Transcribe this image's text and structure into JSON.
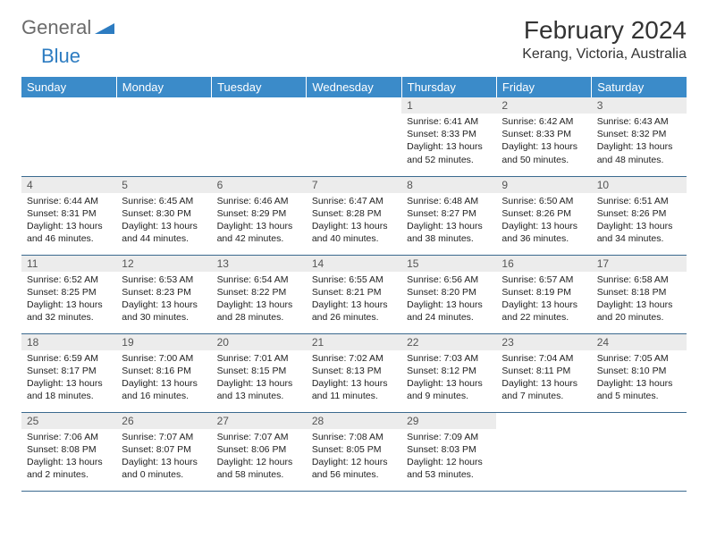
{
  "logo": {
    "part1": "General",
    "part2": "Blue"
  },
  "title": "February 2024",
  "location": "Kerang, Victoria, Australia",
  "colors": {
    "header_bg": "#3b8bc9",
    "header_text": "#ffffff",
    "daynum_bg": "#ececec",
    "border": "#3b6a8f",
    "logo_gray": "#6b6b6b",
    "logo_blue": "#2d7cc1"
  },
  "weekdays": [
    "Sunday",
    "Monday",
    "Tuesday",
    "Wednesday",
    "Thursday",
    "Friday",
    "Saturday"
  ],
  "weeks": [
    [
      null,
      null,
      null,
      null,
      {
        "n": "1",
        "sr": "Sunrise: 6:41 AM",
        "ss": "Sunset: 8:33 PM",
        "dl": "Daylight: 13 hours and 52 minutes."
      },
      {
        "n": "2",
        "sr": "Sunrise: 6:42 AM",
        "ss": "Sunset: 8:33 PM",
        "dl": "Daylight: 13 hours and 50 minutes."
      },
      {
        "n": "3",
        "sr": "Sunrise: 6:43 AM",
        "ss": "Sunset: 8:32 PM",
        "dl": "Daylight: 13 hours and 48 minutes."
      }
    ],
    [
      {
        "n": "4",
        "sr": "Sunrise: 6:44 AM",
        "ss": "Sunset: 8:31 PM",
        "dl": "Daylight: 13 hours and 46 minutes."
      },
      {
        "n": "5",
        "sr": "Sunrise: 6:45 AM",
        "ss": "Sunset: 8:30 PM",
        "dl": "Daylight: 13 hours and 44 minutes."
      },
      {
        "n": "6",
        "sr": "Sunrise: 6:46 AM",
        "ss": "Sunset: 8:29 PM",
        "dl": "Daylight: 13 hours and 42 minutes."
      },
      {
        "n": "7",
        "sr": "Sunrise: 6:47 AM",
        "ss": "Sunset: 8:28 PM",
        "dl": "Daylight: 13 hours and 40 minutes."
      },
      {
        "n": "8",
        "sr": "Sunrise: 6:48 AM",
        "ss": "Sunset: 8:27 PM",
        "dl": "Daylight: 13 hours and 38 minutes."
      },
      {
        "n": "9",
        "sr": "Sunrise: 6:50 AM",
        "ss": "Sunset: 8:26 PM",
        "dl": "Daylight: 13 hours and 36 minutes."
      },
      {
        "n": "10",
        "sr": "Sunrise: 6:51 AM",
        "ss": "Sunset: 8:26 PM",
        "dl": "Daylight: 13 hours and 34 minutes."
      }
    ],
    [
      {
        "n": "11",
        "sr": "Sunrise: 6:52 AM",
        "ss": "Sunset: 8:25 PM",
        "dl": "Daylight: 13 hours and 32 minutes."
      },
      {
        "n": "12",
        "sr": "Sunrise: 6:53 AM",
        "ss": "Sunset: 8:23 PM",
        "dl": "Daylight: 13 hours and 30 minutes."
      },
      {
        "n": "13",
        "sr": "Sunrise: 6:54 AM",
        "ss": "Sunset: 8:22 PM",
        "dl": "Daylight: 13 hours and 28 minutes."
      },
      {
        "n": "14",
        "sr": "Sunrise: 6:55 AM",
        "ss": "Sunset: 8:21 PM",
        "dl": "Daylight: 13 hours and 26 minutes."
      },
      {
        "n": "15",
        "sr": "Sunrise: 6:56 AM",
        "ss": "Sunset: 8:20 PM",
        "dl": "Daylight: 13 hours and 24 minutes."
      },
      {
        "n": "16",
        "sr": "Sunrise: 6:57 AM",
        "ss": "Sunset: 8:19 PM",
        "dl": "Daylight: 13 hours and 22 minutes."
      },
      {
        "n": "17",
        "sr": "Sunrise: 6:58 AM",
        "ss": "Sunset: 8:18 PM",
        "dl": "Daylight: 13 hours and 20 minutes."
      }
    ],
    [
      {
        "n": "18",
        "sr": "Sunrise: 6:59 AM",
        "ss": "Sunset: 8:17 PM",
        "dl": "Daylight: 13 hours and 18 minutes."
      },
      {
        "n": "19",
        "sr": "Sunrise: 7:00 AM",
        "ss": "Sunset: 8:16 PM",
        "dl": "Daylight: 13 hours and 16 minutes."
      },
      {
        "n": "20",
        "sr": "Sunrise: 7:01 AM",
        "ss": "Sunset: 8:15 PM",
        "dl": "Daylight: 13 hours and 13 minutes."
      },
      {
        "n": "21",
        "sr": "Sunrise: 7:02 AM",
        "ss": "Sunset: 8:13 PM",
        "dl": "Daylight: 13 hours and 11 minutes."
      },
      {
        "n": "22",
        "sr": "Sunrise: 7:03 AM",
        "ss": "Sunset: 8:12 PM",
        "dl": "Daylight: 13 hours and 9 minutes."
      },
      {
        "n": "23",
        "sr": "Sunrise: 7:04 AM",
        "ss": "Sunset: 8:11 PM",
        "dl": "Daylight: 13 hours and 7 minutes."
      },
      {
        "n": "24",
        "sr": "Sunrise: 7:05 AM",
        "ss": "Sunset: 8:10 PM",
        "dl": "Daylight: 13 hours and 5 minutes."
      }
    ],
    [
      {
        "n": "25",
        "sr": "Sunrise: 7:06 AM",
        "ss": "Sunset: 8:08 PM",
        "dl": "Daylight: 13 hours and 2 minutes."
      },
      {
        "n": "26",
        "sr": "Sunrise: 7:07 AM",
        "ss": "Sunset: 8:07 PM",
        "dl": "Daylight: 13 hours and 0 minutes."
      },
      {
        "n": "27",
        "sr": "Sunrise: 7:07 AM",
        "ss": "Sunset: 8:06 PM",
        "dl": "Daylight: 12 hours and 58 minutes."
      },
      {
        "n": "28",
        "sr": "Sunrise: 7:08 AM",
        "ss": "Sunset: 8:05 PM",
        "dl": "Daylight: 12 hours and 56 minutes."
      },
      {
        "n": "29",
        "sr": "Sunrise: 7:09 AM",
        "ss": "Sunset: 8:03 PM",
        "dl": "Daylight: 12 hours and 53 minutes."
      },
      null,
      null
    ]
  ]
}
